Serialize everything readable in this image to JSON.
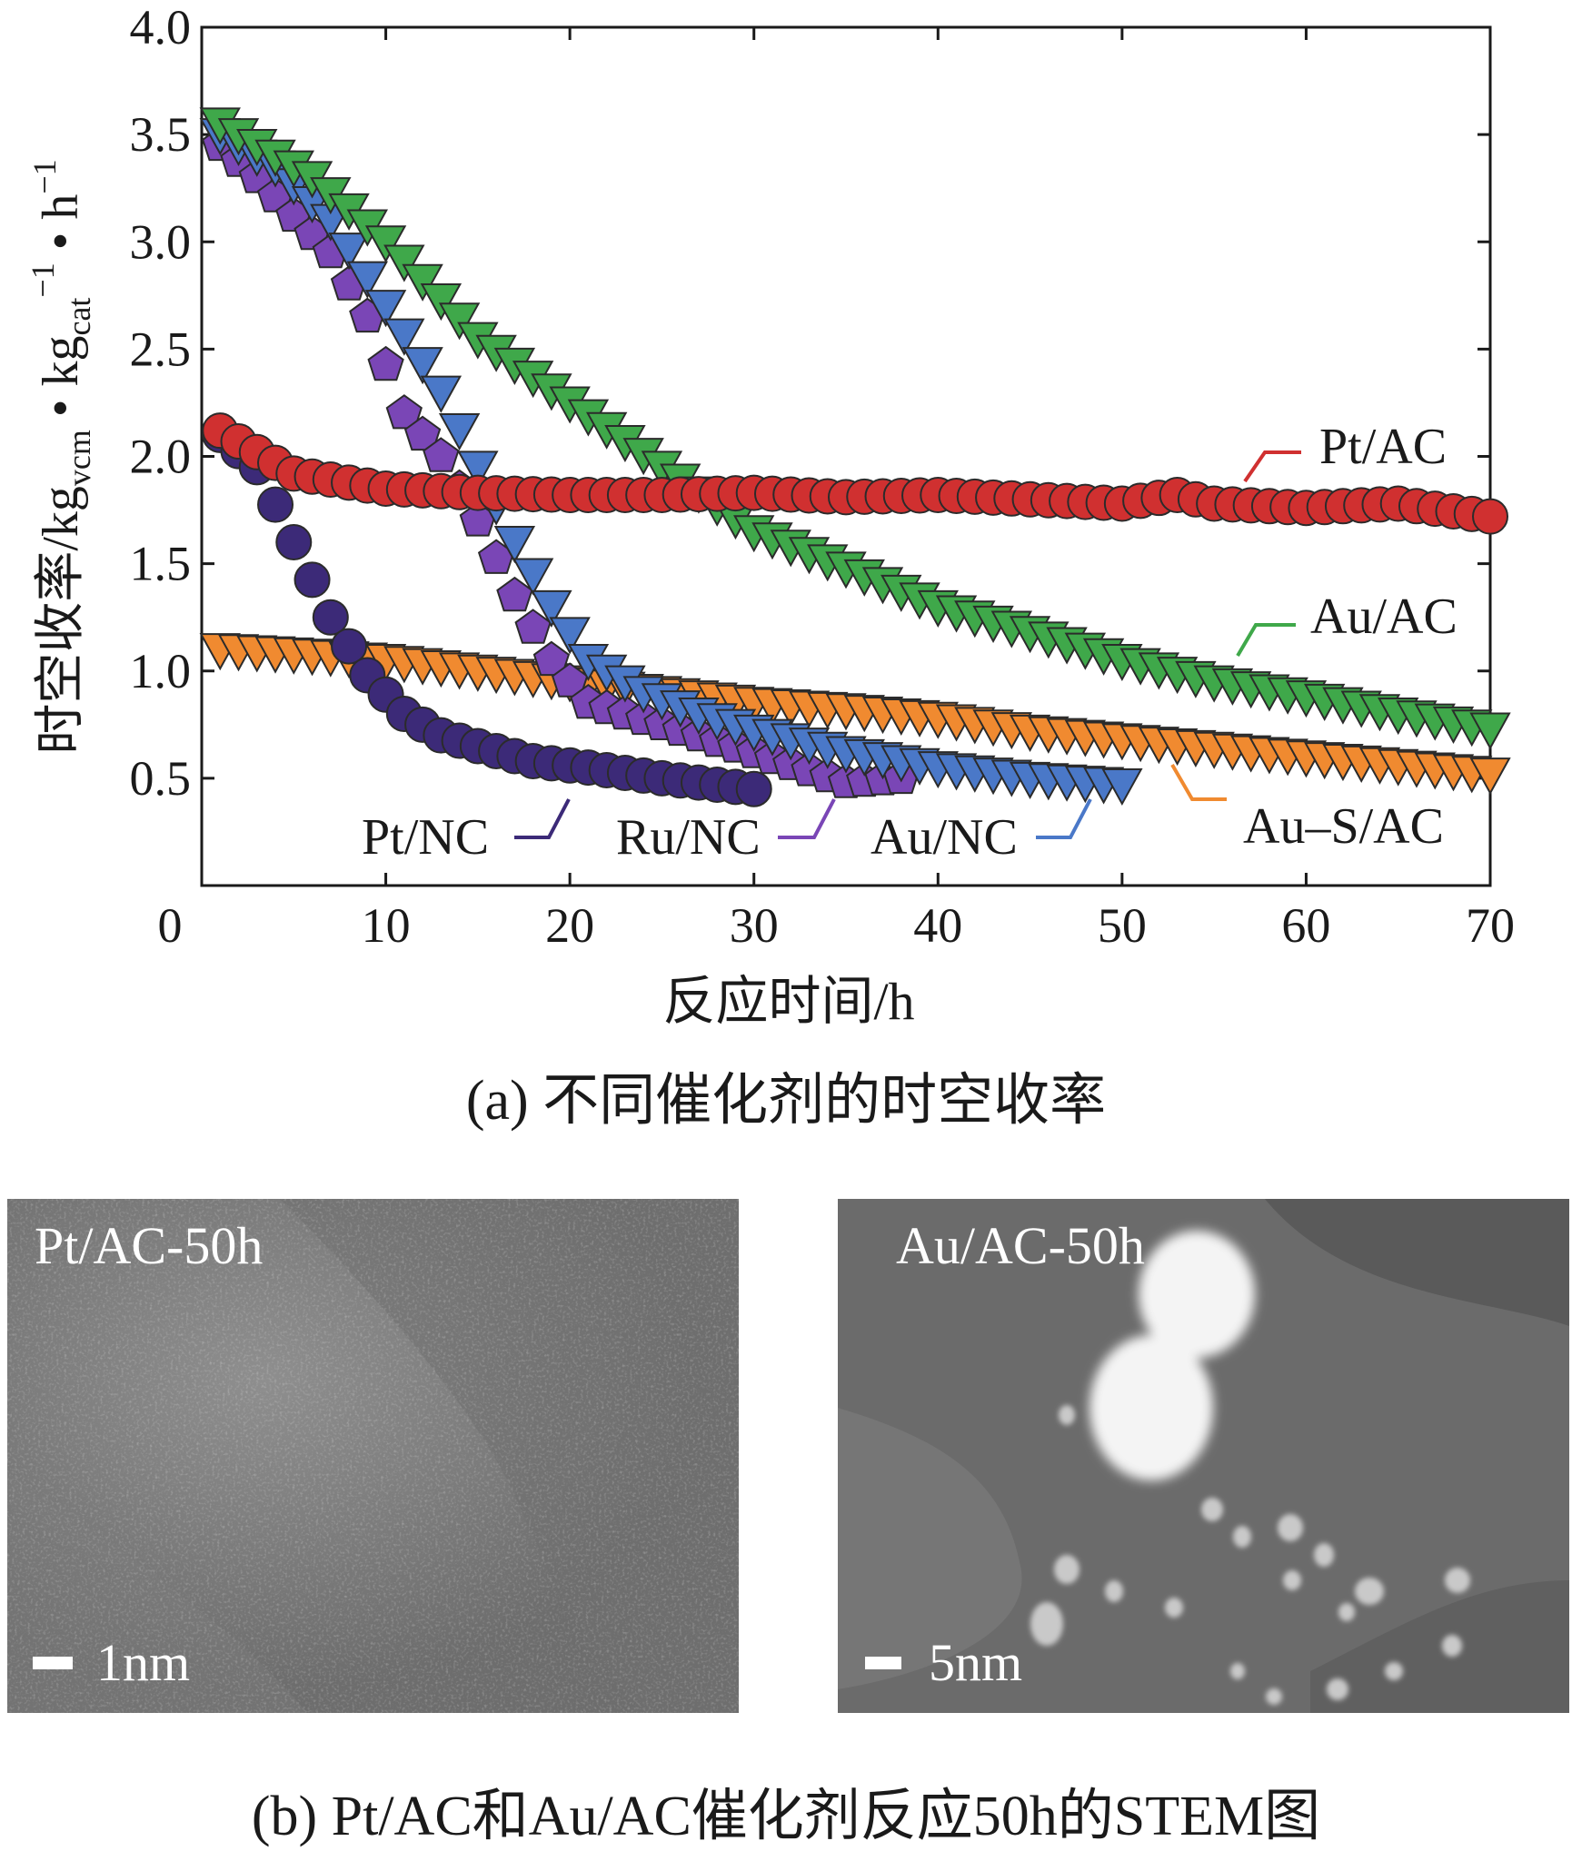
{
  "chart_data": {
    "type": "scatter",
    "title": "",
    "xlabel": "反应时间/h",
    "ylabel": {
      "parts": [
        "时空收率/kg",
        "vcm",
        " • kg",
        "cat",
        "−1",
        " • h",
        "−1"
      ]
    },
    "xlim": [
      0,
      70
    ],
    "ylim": [
      0,
      4.0
    ],
    "x_ticks": [
      "0",
      "10",
      "20",
      "30",
      "40",
      "50",
      "60",
      "70"
    ],
    "y_ticks": [
      "0.5",
      "1.0",
      "1.5",
      "2.0",
      "2.5",
      "3.0",
      "3.5",
      "4.0"
    ],
    "grid": false,
    "series": [
      {
        "name": "Pt/AC",
        "marker": "circle",
        "color": "#d03030",
        "x": [
          1,
          5,
          10,
          15,
          20,
          25,
          30,
          35,
          40,
          45,
          50,
          53,
          55,
          60,
          65,
          70
        ],
        "y": [
          2.12,
          1.92,
          1.85,
          1.83,
          1.82,
          1.82,
          1.83,
          1.81,
          1.82,
          1.8,
          1.78,
          1.82,
          1.78,
          1.76,
          1.78,
          1.72
        ]
      },
      {
        "name": "Au/AC",
        "marker": "triangle-down",
        "color": "#3fa84a",
        "x": [
          1,
          3,
          6,
          10,
          15,
          20,
          25,
          30,
          35,
          40,
          45,
          50,
          55,
          60,
          65,
          70
        ],
        "y": [
          3.55,
          3.45,
          3.3,
          3.0,
          2.55,
          2.25,
          1.95,
          1.65,
          1.48,
          1.3,
          1.18,
          1.05,
          0.95,
          0.88,
          0.8,
          0.73
        ]
      },
      {
        "name": "Au–S/AC",
        "marker": "triangle-down",
        "color": "#f08a30",
        "x": [
          1,
          5,
          10,
          15,
          20,
          25,
          30,
          35,
          40,
          45,
          50,
          55,
          60,
          65,
          70
        ],
        "y": [
          1.1,
          1.08,
          1.05,
          1.0,
          0.95,
          0.9,
          0.85,
          0.82,
          0.78,
          0.72,
          0.68,
          0.64,
          0.6,
          0.56,
          0.52
        ]
      },
      {
        "name": "Pt/NC",
        "marker": "circle",
        "color": "#3c2a78",
        "x": [
          1,
          3,
          5,
          7,
          9,
          11,
          13,
          15,
          18,
          21,
          25,
          30
        ],
        "y": [
          2.1,
          1.95,
          1.6,
          1.25,
          0.98,
          0.8,
          0.7,
          0.65,
          0.58,
          0.55,
          0.5,
          0.45
        ]
      },
      {
        "name": "Ru/NC",
        "marker": "pentagon",
        "color": "#7a46b6",
        "x": [
          1,
          3,
          5,
          7,
          9,
          11,
          13,
          15,
          17,
          19,
          21,
          25,
          30,
          35,
          38
        ],
        "y": [
          3.45,
          3.3,
          3.12,
          2.95,
          2.65,
          2.2,
          2.0,
          1.7,
          1.35,
          1.05,
          0.85,
          0.75,
          0.62,
          0.48,
          0.5
        ]
      },
      {
        "name": "Au/NC",
        "marker": "triangle-down",
        "color": "#4a78c8",
        "x": [
          1,
          4,
          7,
          10,
          13,
          15,
          17,
          19,
          21,
          24,
          27,
          30,
          35,
          40,
          45,
          50
        ],
        "y": [
          3.5,
          3.35,
          3.1,
          2.7,
          2.3,
          1.95,
          1.6,
          1.3,
          1.05,
          0.9,
          0.8,
          0.72,
          0.62,
          0.55,
          0.5,
          0.47
        ]
      }
    ],
    "annotations": [
      {
        "text": "Pt/AC",
        "series": "Pt/AC"
      },
      {
        "text": "Au/AC",
        "series": "Au/AC"
      },
      {
        "text": "Au–S/AC",
        "series": "Au–S/AC"
      },
      {
        "text": "Pt/NC",
        "series": "Pt/NC"
      },
      {
        "text": "Ru/NC",
        "series": "Ru/NC"
      },
      {
        "text": "Au/NC",
        "series": "Au/NC"
      }
    ]
  },
  "captions": {
    "a": "(a) 不同催化剂的时空收率",
    "b": "(b) Pt/AC和Au/AC催化剂反应50h的STEM图"
  },
  "stem_images": [
    {
      "label": "Pt/AC-50h",
      "scale": "1nm"
    },
    {
      "label": "Au/AC-50h",
      "scale": "5nm"
    }
  ]
}
